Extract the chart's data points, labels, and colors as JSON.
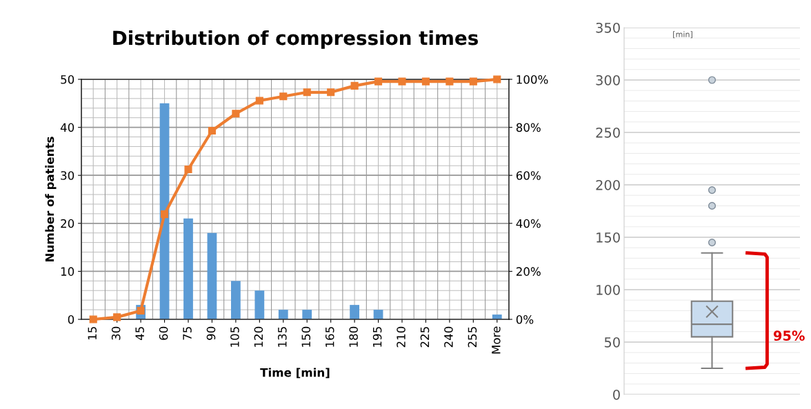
{
  "chart_data": [
    {
      "type": "bar",
      "title": "Distribution of compression times",
      "xlabel": "Time [min]",
      "ylabel": "Number of patients",
      "categories": [
        "15",
        "30",
        "45",
        "60",
        "75",
        "90",
        "105",
        "120",
        "135",
        "150",
        "165",
        "180",
        "195",
        "210",
        "225",
        "240",
        "255",
        "More"
      ],
      "series": [
        {
          "type": "bar",
          "color": "#5b9bd5",
          "values": [
            0,
            null,
            3,
            45,
            21,
            18,
            8,
            6,
            2,
            2,
            0,
            3,
            2,
            0,
            0,
            0,
            0,
            1
          ]
        },
        {
          "type": "line",
          "axis": "y2",
          "color": "#ed7d31",
          "marker": "square",
          "line_style": "solid",
          "values": [
            0,
            0.9,
            3.6,
            43.8,
            62.5,
            78.6,
            85.7,
            91.1,
            92.9,
            94.6,
            94.6,
            97.3,
            99.1,
            99.1,
            99.1,
            99.1,
            99.1,
            100
          ]
        }
      ],
      "ylim": [
        0,
        50
      ],
      "yticks": [
        0,
        10,
        20,
        30,
        40,
        50
      ],
      "y2lim": [
        0,
        100
      ],
      "y2ticks": [
        {
          "value": 0,
          "label": "0%"
        },
        {
          "value": 20,
          "label": "20%"
        },
        {
          "value": 40,
          "label": "40%"
        },
        {
          "value": 60,
          "label": "60%"
        },
        {
          "value": 80,
          "label": "80%"
        },
        {
          "value": 100,
          "label": "100%"
        }
      ],
      "grid": true,
      "legend": false
    },
    {
      "type": "box",
      "categories": [
        null
      ],
      "boxes": [
        {
          "low": 25,
          "q1": 55,
          "median": 67,
          "q3": 89,
          "high": 135,
          "mean": 79,
          "outliers": [
            145,
            180,
            195,
            300
          ]
        }
      ],
      "color": "#c9dcef",
      "ylim": [
        0,
        350
      ],
      "yticks": [
        0,
        50,
        100,
        150,
        200,
        250,
        300,
        350
      ],
      "grid": "y",
      "annotations": [
        "[min]",
        "95%"
      ]
    }
  ]
}
